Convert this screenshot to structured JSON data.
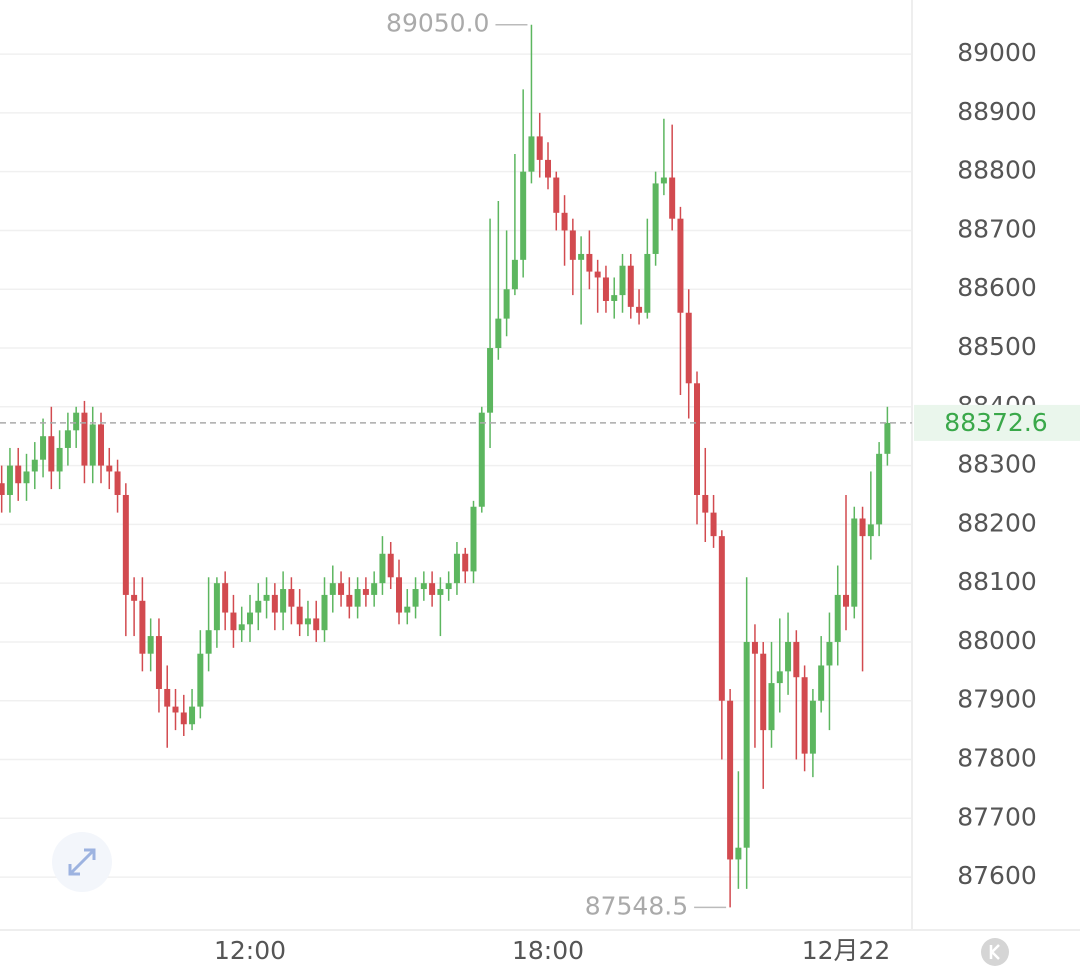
{
  "chart_data": {
    "type": "candlestick",
    "categories": [
      null,
      null,
      null,
      null,
      null,
      null,
      null,
      null,
      null,
      null,
      null,
      null,
      null,
      null,
      null,
      null,
      null,
      null,
      null,
      null,
      null,
      null,
      null,
      null,
      null,
      null,
      null,
      null,
      null,
      null,
      "12:00",
      null,
      null,
      null,
      null,
      null,
      null,
      null,
      null,
      null,
      null,
      null,
      null,
      null,
      null,
      null,
      null,
      null,
      null,
      null,
      null,
      null,
      null,
      null,
      null,
      null,
      null,
      null,
      null,
      null,
      null,
      null,
      null,
      null,
      null,
      null,
      "18:00",
      null,
      null,
      null,
      null,
      null,
      null,
      null,
      null,
      null,
      null,
      null,
      null,
      null,
      null,
      null,
      null,
      null,
      null,
      null,
      null,
      null,
      null,
      null,
      null,
      null,
      null,
      null,
      null,
      null,
      null,
      null,
      null,
      null,
      null,
      null,
      "12月22",
      null,
      null,
      null,
      null,
      null
    ],
    "open": [
      88270,
      88250,
      88300,
      88270,
      88290,
      88310,
      88350,
      88290,
      88330,
      88360,
      88390,
      88300,
      88370,
      88300,
      88290,
      88250,
      88080,
      88070,
      87980,
      88010,
      87920,
      87890,
      87880,
      87860,
      87890,
      87980,
      88020,
      88100,
      88050,
      88020,
      88030,
      88050,
      88070,
      88080,
      88050,
      88090,
      88060,
      88030,
      88040,
      88020,
      88080,
      88100,
      88080,
      88060,
      88090,
      88080,
      88100,
      88150,
      88110,
      88050,
      88060,
      88090,
      88100,
      88080,
      88090,
      88100,
      88150,
      88120,
      88230,
      88390,
      88500,
      88550,
      88600,
      88650,
      88800,
      88860,
      88820,
      88790,
      88730,
      88700,
      88650,
      88660,
      88630,
      88620,
      88580,
      88590,
      88640,
      88570,
      88560,
      88660,
      88780,
      88790,
      88720,
      88560,
      88440,
      88250,
      88220,
      88180,
      87900,
      87630,
      87650,
      88000,
      87980,
      87850,
      87930,
      87950,
      88000,
      87940,
      87810,
      87900,
      87960,
      88000,
      88080,
      88060,
      88210,
      88180,
      88200,
      88320
    ],
    "high": [
      88300,
      88330,
      88330,
      88320,
      88340,
      88380,
      88400,
      88360,
      88390,
      88400,
      88410,
      88400,
      88390,
      88330,
      88310,
      88270,
      88110,
      88110,
      88040,
      88040,
      87960,
      87920,
      87910,
      87920,
      88020,
      88110,
      88110,
      88120,
      88080,
      88060,
      88080,
      88100,
      88110,
      88100,
      88120,
      88110,
      88090,
      88070,
      88070,
      88110,
      88130,
      88120,
      88110,
      88110,
      88110,
      88120,
      88180,
      88170,
      88140,
      88090,
      88110,
      88120,
      88120,
      88110,
      88120,
      88170,
      88160,
      88240,
      88400,
      88720,
      88750,
      88700,
      88830,
      88940,
      89050,
      88900,
      88850,
      88800,
      88760,
      88720,
      88690,
      88700,
      88650,
      88640,
      88620,
      88660,
      88660,
      88600,
      88720,
      88800,
      88890,
      88880,
      88740,
      88600,
      88460,
      88330,
      88250,
      88190,
      87920,
      87780,
      88110,
      88030,
      88000,
      88000,
      88040,
      88050,
      88020,
      87960,
      87920,
      88010,
      88050,
      88130,
      88250,
      88230,
      88230,
      88290,
      88340,
      88400
    ],
    "low": [
      88220,
      88220,
      88240,
      88240,
      88260,
      88280,
      88260,
      88260,
      88300,
      88330,
      88270,
      88270,
      88270,
      88260,
      88220,
      88010,
      88010,
      87950,
      87950,
      87880,
      87820,
      87850,
      87840,
      87850,
      87870,
      87950,
      87990,
      88020,
      87990,
      88000,
      88000,
      88020,
      88040,
      88020,
      88020,
      88030,
      88010,
      88010,
      88000,
      88000,
      88050,
      88060,
      88040,
      88040,
      88060,
      88060,
      88080,
      88090,
      88030,
      88030,
      88040,
      88070,
      88060,
      88010,
      88070,
      88080,
      88100,
      88100,
      88220,
      88330,
      88480,
      88520,
      88590,
      88620,
      88780,
      88790,
      88770,
      88700,
      88640,
      88590,
      88540,
      88600,
      88560,
      88560,
      88550,
      88560,
      88550,
      88540,
      88550,
      88640,
      88760,
      88700,
      88420,
      88380,
      88200,
      88170,
      88160,
      87800,
      87548.5,
      87580,
      87580,
      87820,
      87750,
      87820,
      87880,
      87910,
      87800,
      87780,
      87770,
      87880,
      87850,
      87960,
      88020,
      88040,
      87950,
      88140,
      88180,
      88300
    ],
    "close": [
      88250,
      88300,
      88270,
      88290,
      88310,
      88350,
      88290,
      88330,
      88360,
      88390,
      88300,
      88370,
      88300,
      88290,
      88250,
      88080,
      88070,
      87980,
      88010,
      87920,
      87890,
      87880,
      87860,
      87890,
      87980,
      88020,
      88100,
      88050,
      88020,
      88030,
      88050,
      88070,
      88080,
      88050,
      88090,
      88060,
      88030,
      88040,
      88020,
      88080,
      88100,
      88080,
      88060,
      88090,
      88080,
      88100,
      88150,
      88110,
      88050,
      88060,
      88090,
      88100,
      88080,
      88090,
      88100,
      88150,
      88120,
      88230,
      88390,
      88500,
      88550,
      88600,
      88650,
      88800,
      88860,
      88820,
      88790,
      88730,
      88700,
      88650,
      88660,
      88630,
      88620,
      88580,
      88590,
      88640,
      88570,
      88560,
      88660,
      88780,
      88790,
      88720,
      88560,
      88440,
      88250,
      88220,
      88180,
      87900,
      87630,
      87650,
      88000,
      87980,
      87850,
      87930,
      87950,
      88000,
      87940,
      87810,
      87900,
      87960,
      88000,
      88080,
      88060,
      88210,
      88180,
      88200,
      88320,
      88372.6
    ],
    "up_color": "#5cb65f",
    "down_color": "#d24a4f",
    "ylim": [
      87510,
      89092
    ],
    "yticks": [
      87600,
      87700,
      87800,
      87900,
      88000,
      88100,
      88200,
      88300,
      88400,
      88500,
      88600,
      88700,
      88800,
      88900,
      89000
    ],
    "grid": true,
    "max_annotation": {
      "value": 89050,
      "label": "89050.0"
    },
    "min_annotation": {
      "value": 87548.5,
      "label": "87548.5"
    },
    "last_price": 88372.6
  }
}
